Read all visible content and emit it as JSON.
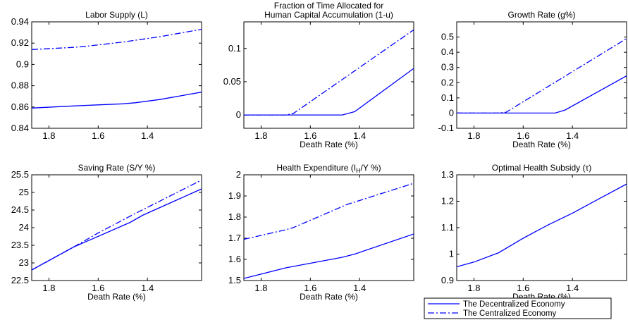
{
  "figure": {
    "line_color": "#0000ff",
    "legend": [
      {
        "label": "The Decentralized Economy",
        "style": "solid"
      },
      {
        "label": "The Centralized Economy",
        "style": "dashdot"
      }
    ],
    "legend_placement": "bottom-right"
  },
  "chart_data": [
    {
      "type": "line",
      "title": "Labor Supply (L)",
      "xlabel": "",
      "ylabel": "",
      "x_reversed": true,
      "xlim": [
        1.87,
        1.18
      ],
      "ylim": [
        0.84,
        0.94
      ],
      "xticks": [
        1.8,
        1.6,
        1.4
      ],
      "xtick_labels": [
        "1.8",
        "1.6",
        "1.4"
      ],
      "yticks": [
        0.84,
        0.86,
        0.88,
        0.9,
        0.92,
        0.94
      ],
      "ytick_labels": [
        "0.84",
        "0.86",
        "0.88",
        "0.9",
        "0.92",
        "0.94"
      ],
      "grid": false,
      "series": [
        {
          "name": "The Decentralized Economy",
          "style": "solid",
          "x": [
            1.87,
            1.7,
            1.5,
            1.45,
            1.35,
            1.18
          ],
          "y": [
            0.859,
            0.861,
            0.863,
            0.864,
            0.867,
            0.874
          ]
        },
        {
          "name": "The Centralized Economy",
          "style": "dashdot",
          "x": [
            1.87,
            1.7,
            1.65,
            1.5,
            1.35,
            1.18
          ],
          "y": [
            0.914,
            0.916,
            0.917,
            0.921,
            0.926,
            0.933
          ]
        }
      ]
    },
    {
      "type": "line",
      "title": "Fraction of Time Allocated for\nHuman Capital Accumulation (1-u)",
      "xlabel": "Death Rate (%)",
      "ylabel": "",
      "x_reversed": true,
      "xlim": [
        1.87,
        1.18
      ],
      "ylim": [
        -0.02,
        0.14
      ],
      "xticks": [
        1.8,
        1.6,
        1.4
      ],
      "xtick_labels": [
        "1.8",
        "1.6",
        "1.4"
      ],
      "yticks": [
        0,
        0.05,
        0.1
      ],
      "ytick_labels": [
        "0",
        "0.05",
        "0.1"
      ],
      "grid": false,
      "series": [
        {
          "name": "The Decentralized Economy",
          "style": "solid",
          "x": [
            1.87,
            1.6,
            1.47,
            1.42,
            1.18
          ],
          "y": [
            0,
            0,
            0,
            0.005,
            0.07
          ]
        },
        {
          "name": "The Centralized Economy",
          "style": "dashdot",
          "x": [
            1.87,
            1.7,
            1.67,
            1.18
          ],
          "y": [
            0,
            0,
            0.002,
            0.128
          ]
        }
      ]
    },
    {
      "type": "line",
      "title": "Growth Rate (g%)",
      "xlabel": "Death Rate (%)",
      "ylabel": "",
      "x_reversed": true,
      "xlim": [
        1.87,
        1.18
      ],
      "ylim": [
        -0.1,
        0.6
      ],
      "xticks": [
        1.8,
        1.6,
        1.4
      ],
      "xtick_labels": [
        "1.8",
        "1.6",
        "1.4"
      ],
      "yticks": [
        -0.1,
        0,
        0.1,
        0.2,
        0.3,
        0.4,
        0.5
      ],
      "ytick_labels": [
        "-0.1",
        "0",
        "0.1",
        "0.2",
        "0.3",
        "0.4",
        "0.5"
      ],
      "grid": false,
      "series": [
        {
          "name": "The Decentralized Economy",
          "style": "solid",
          "x": [
            1.87,
            1.6,
            1.47,
            1.43,
            1.18
          ],
          "y": [
            0,
            0,
            0,
            0.02,
            0.245
          ]
        },
        {
          "name": "The Centralized Economy",
          "style": "dashdot",
          "x": [
            1.87,
            1.7,
            1.67,
            1.18
          ],
          "y": [
            0,
            0,
            0.005,
            0.49
          ]
        }
      ]
    },
    {
      "type": "line",
      "title": "Saving Rate (S/Y %)",
      "xlabel": "Death Rate (%)",
      "ylabel": "",
      "x_reversed": true,
      "xlim": [
        1.87,
        1.18
      ],
      "ylim": [
        22.5,
        25.5
      ],
      "xticks": [
        1.8,
        1.6,
        1.4
      ],
      "xtick_labels": [
        "1.8",
        "1.6",
        "1.4"
      ],
      "yticks": [
        22.5,
        23,
        23.5,
        24,
        24.5,
        25,
        25.5
      ],
      "ytick_labels": [
        "22.5",
        "23",
        "23.5",
        "24",
        "24.5",
        "25",
        "25.5"
      ],
      "grid": false,
      "series": [
        {
          "name": "The Decentralized Economy",
          "style": "solid",
          "x": [
            1.87,
            1.7,
            1.47,
            1.42,
            1.18
          ],
          "y": [
            22.8,
            23.45,
            24.15,
            24.35,
            25.1
          ]
        },
        {
          "name": "The Centralized Economy",
          "style": "dashdot",
          "x": [
            1.87,
            1.7,
            1.6,
            1.45,
            1.18
          ],
          "y": [
            22.8,
            23.45,
            23.85,
            24.4,
            25.35
          ]
        }
      ]
    },
    {
      "type": "line",
      "title": "Health Expenditure (I_H/Y %)",
      "xlabel": "Death Rate (%)",
      "ylabel": "",
      "x_reversed": true,
      "xlim": [
        1.87,
        1.18
      ],
      "ylim": [
        1.5,
        2.0
      ],
      "xticks": [
        1.8,
        1.6,
        1.4
      ],
      "xtick_labels": [
        "1.8",
        "1.6",
        "1.4"
      ],
      "yticks": [
        1.5,
        1.6,
        1.7,
        1.8,
        1.9,
        2
      ],
      "ytick_labels": [
        "1.5",
        "1.6",
        "1.7",
        "1.8",
        "1.9",
        "2"
      ],
      "grid": false,
      "series": [
        {
          "name": "The Decentralized Economy",
          "style": "solid",
          "x": [
            1.87,
            1.7,
            1.47,
            1.42,
            1.18
          ],
          "y": [
            1.51,
            1.56,
            1.61,
            1.625,
            1.72
          ]
        },
        {
          "name": "The Centralized Economy",
          "style": "dashdot",
          "x": [
            1.87,
            1.7,
            1.67,
            1.45,
            1.18
          ],
          "y": [
            1.695,
            1.74,
            1.75,
            1.86,
            1.96
          ]
        }
      ]
    },
    {
      "type": "line",
      "title": "Optimal Health Subsidy (τ)",
      "xlabel": "Death Rate (%)",
      "ylabel": "",
      "x_reversed": true,
      "xlim": [
        1.87,
        1.18
      ],
      "ylim": [
        0.9,
        1.3
      ],
      "xticks": [
        1.8,
        1.6,
        1.4
      ],
      "xtick_labels": [
        "1.8",
        "1.6",
        "1.4"
      ],
      "yticks": [
        0.9,
        1,
        1.1,
        1.2,
        1.3
      ],
      "ytick_labels": [
        "0.9",
        "1",
        "1.1",
        "1.2",
        "1.3"
      ],
      "grid": false,
      "series": [
        {
          "name": "The Decentralized Economy",
          "style": "solid",
          "x": [
            1.87,
            1.8,
            1.7,
            1.6,
            1.5,
            1.4,
            1.3,
            1.18
          ],
          "y": [
            0.952,
            0.97,
            1.005,
            1.06,
            1.11,
            1.155,
            1.205,
            1.265
          ]
        }
      ]
    }
  ]
}
